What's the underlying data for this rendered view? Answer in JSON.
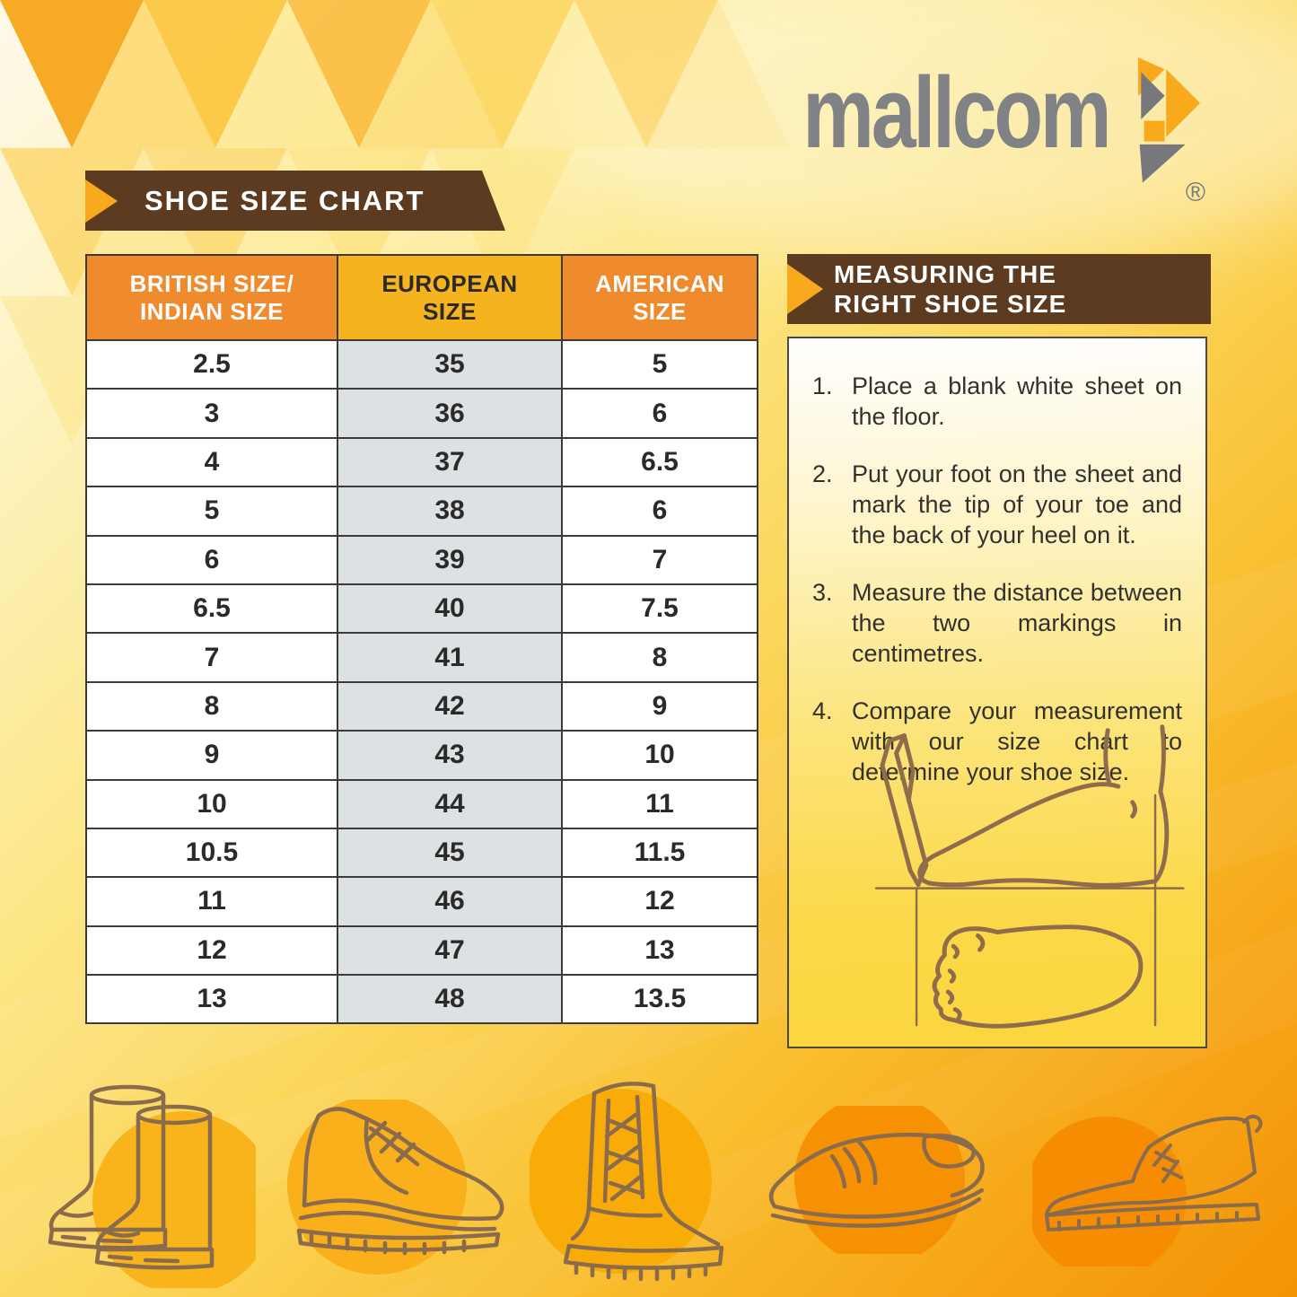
{
  "logo": {
    "text": "mallcom",
    "registered": "®"
  },
  "size_chart": {
    "title": "SHOE SIZE CHART",
    "columns": [
      {
        "line1": "BRITISH SIZE/",
        "line2": "INDIAN SIZE"
      },
      {
        "line1": "EUROPEAN",
        "line2": "SIZE"
      },
      {
        "line1": "AMERICAN",
        "line2": "SIZE"
      }
    ],
    "rows": [
      [
        "2.5",
        "35",
        "5"
      ],
      [
        "3",
        "36",
        "6"
      ],
      [
        "4",
        "37",
        "6.5"
      ],
      [
        "5",
        "38",
        "6"
      ],
      [
        "6",
        "39",
        "7"
      ],
      [
        "6.5",
        "40",
        "7.5"
      ],
      [
        "7",
        "41",
        "8"
      ],
      [
        "8",
        "42",
        "9"
      ],
      [
        "9",
        "43",
        "10"
      ],
      [
        "10",
        "44",
        "11"
      ],
      [
        "10.5",
        "45",
        "11.5"
      ],
      [
        "11",
        "46",
        "12"
      ],
      [
        "12",
        "47",
        "13"
      ],
      [
        "13",
        "48",
        "13.5"
      ]
    ]
  },
  "measuring": {
    "title_line1": "MEASURING THE",
    "title_line2": "RIGHT SHOE SIZE",
    "steps": [
      {
        "num": "1.",
        "text": "Place a blank white sheet on the floor."
      },
      {
        "num": "2.",
        "text": "Put your foot on the sheet and mark the tip of your toe and the back of your heel on it."
      },
      {
        "num": "3.",
        "text": "Measure the distance between the two markings in centimetres."
      },
      {
        "num": "4.",
        "text": "Compare your measurement with our size chart to determine your shoe size."
      }
    ]
  },
  "footwear_icons": [
    "rubber-boots",
    "safety-shoe",
    "lace-up-boot",
    "slip-on-shoe",
    "chukka-boot"
  ],
  "colors": {
    "banner_brown": "#5D3B20",
    "header_orange": "#EF8B2C",
    "header_yellow": "#F5B41E",
    "euro_column_gray": "#DCE1E3",
    "logo_gray": "#808285",
    "accent_orange": "#F9A91C",
    "line_art_brown": "#8A6B4C"
  }
}
